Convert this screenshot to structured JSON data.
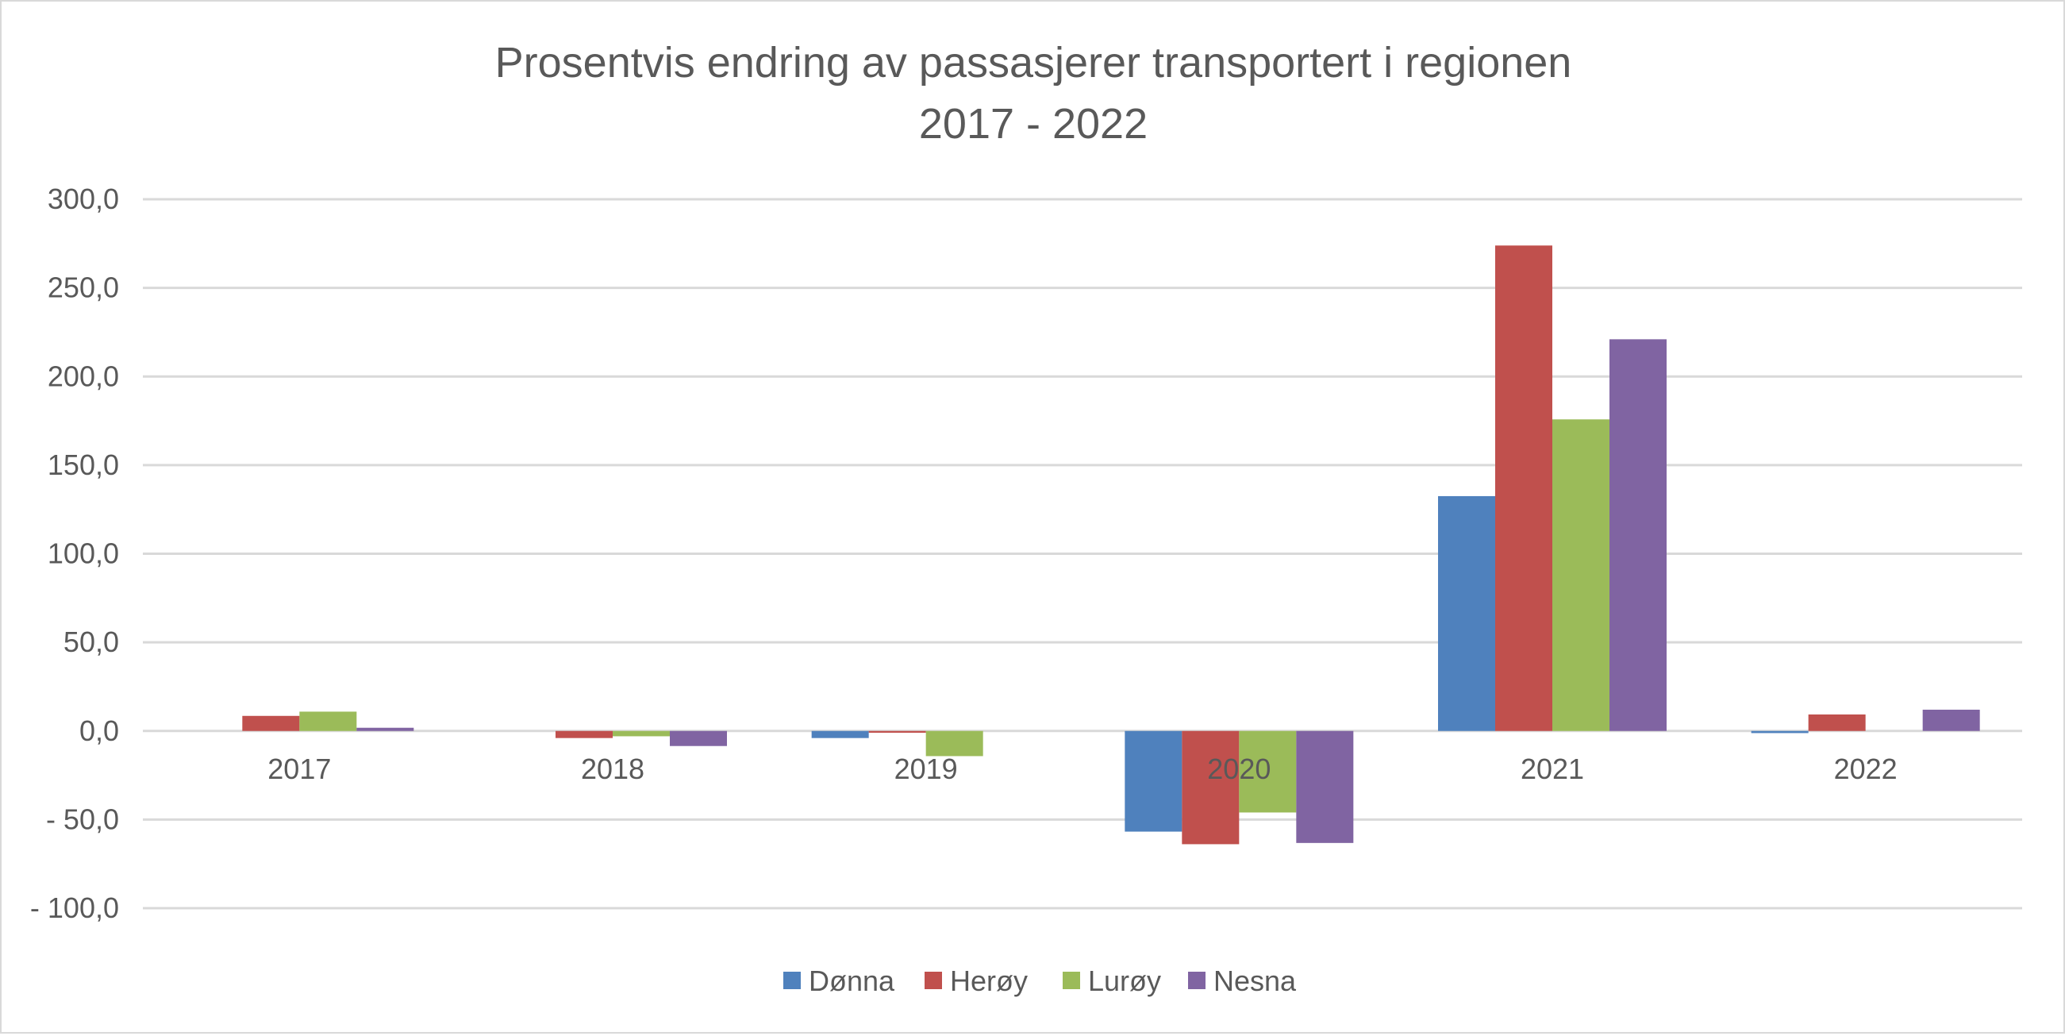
{
  "chart_data": {
    "type": "bar",
    "title": [
      "Prosentvis endring av passasjerer transportert i regionen",
      "2017 - 2022"
    ],
    "xlabel": "",
    "ylabel": "",
    "categories": [
      "2017",
      "2018",
      "2019",
      "2020",
      "2021",
      "2022"
    ],
    "series": [
      {
        "name": "Dønna",
        "color": "#4f81bd",
        "values": [
          0.0,
          0.0,
          -4.0,
          -56.8,
          132.5,
          -1.2
        ]
      },
      {
        "name": "Herøy",
        "color": "#c0504d",
        "values": [
          8.5,
          -4.0,
          -1.0,
          -63.9,
          273.9,
          9.3
        ]
      },
      {
        "name": "Lurøy",
        "color": "#9bbb59",
        "values": [
          10.9,
          -3.0,
          -14.2,
          -46.0,
          175.8,
          0.0
        ]
      },
      {
        "name": "Nesna",
        "color": "#8064a2",
        "values": [
          1.8,
          -8.5,
          0.0,
          -63.2,
          221.0,
          12.0
        ]
      }
    ],
    "ylim": [
      -100,
      300
    ],
    "yticks": [
      300,
      250,
      200,
      150,
      100,
      50,
      0,
      -50,
      -100
    ],
    "ytick_labels": [
      "300,0",
      "250,0",
      "200,0",
      "150,0",
      "100,0",
      "50,0",
      "0,0",
      "- 50,0",
      "- 100,0"
    ],
    "grid": true,
    "legend_position": "bottom"
  }
}
